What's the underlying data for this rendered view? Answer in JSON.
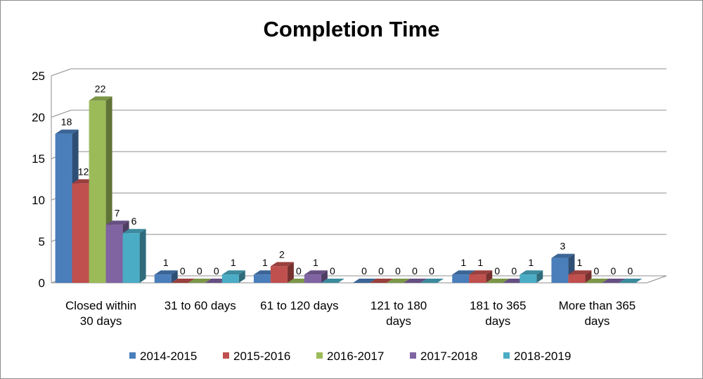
{
  "chart_data": {
    "type": "bar",
    "title": "Completion Time",
    "categories": [
      [
        "Closed within",
        "30 days"
      ],
      [
        "31 to 60 days"
      ],
      [
        "61 to 120 days"
      ],
      [
        "121 to 180",
        "days"
      ],
      [
        "181 to 365",
        "days"
      ],
      [
        "More than 365",
        "days"
      ]
    ],
    "series": [
      {
        "name": "2014-2015",
        "values": [
          18,
          1,
          1,
          0,
          1,
          3
        ],
        "color": "#4a7ebb"
      },
      {
        "name": "2015-2016",
        "values": [
          12,
          0,
          2,
          0,
          1,
          1
        ],
        "color": "#c0504d"
      },
      {
        "name": "2016-2017",
        "values": [
          22,
          0,
          0,
          0,
          0,
          0
        ],
        "color": "#9bbb59"
      },
      {
        "name": "2017-2018",
        "values": [
          7,
          0,
          1,
          0,
          0,
          0
        ],
        "color": "#8064a2"
      },
      {
        "name": "2018-2019",
        "values": [
          6,
          1,
          0,
          0,
          1,
          0
        ],
        "color": "#4bacc6"
      }
    ],
    "ylim": [
      0,
      25
    ],
    "yticks": [
      0,
      5,
      10,
      15,
      20,
      25
    ],
    "grid": true,
    "legend": "bottom",
    "data_labels": true,
    "style": "3d-clustered-column"
  }
}
